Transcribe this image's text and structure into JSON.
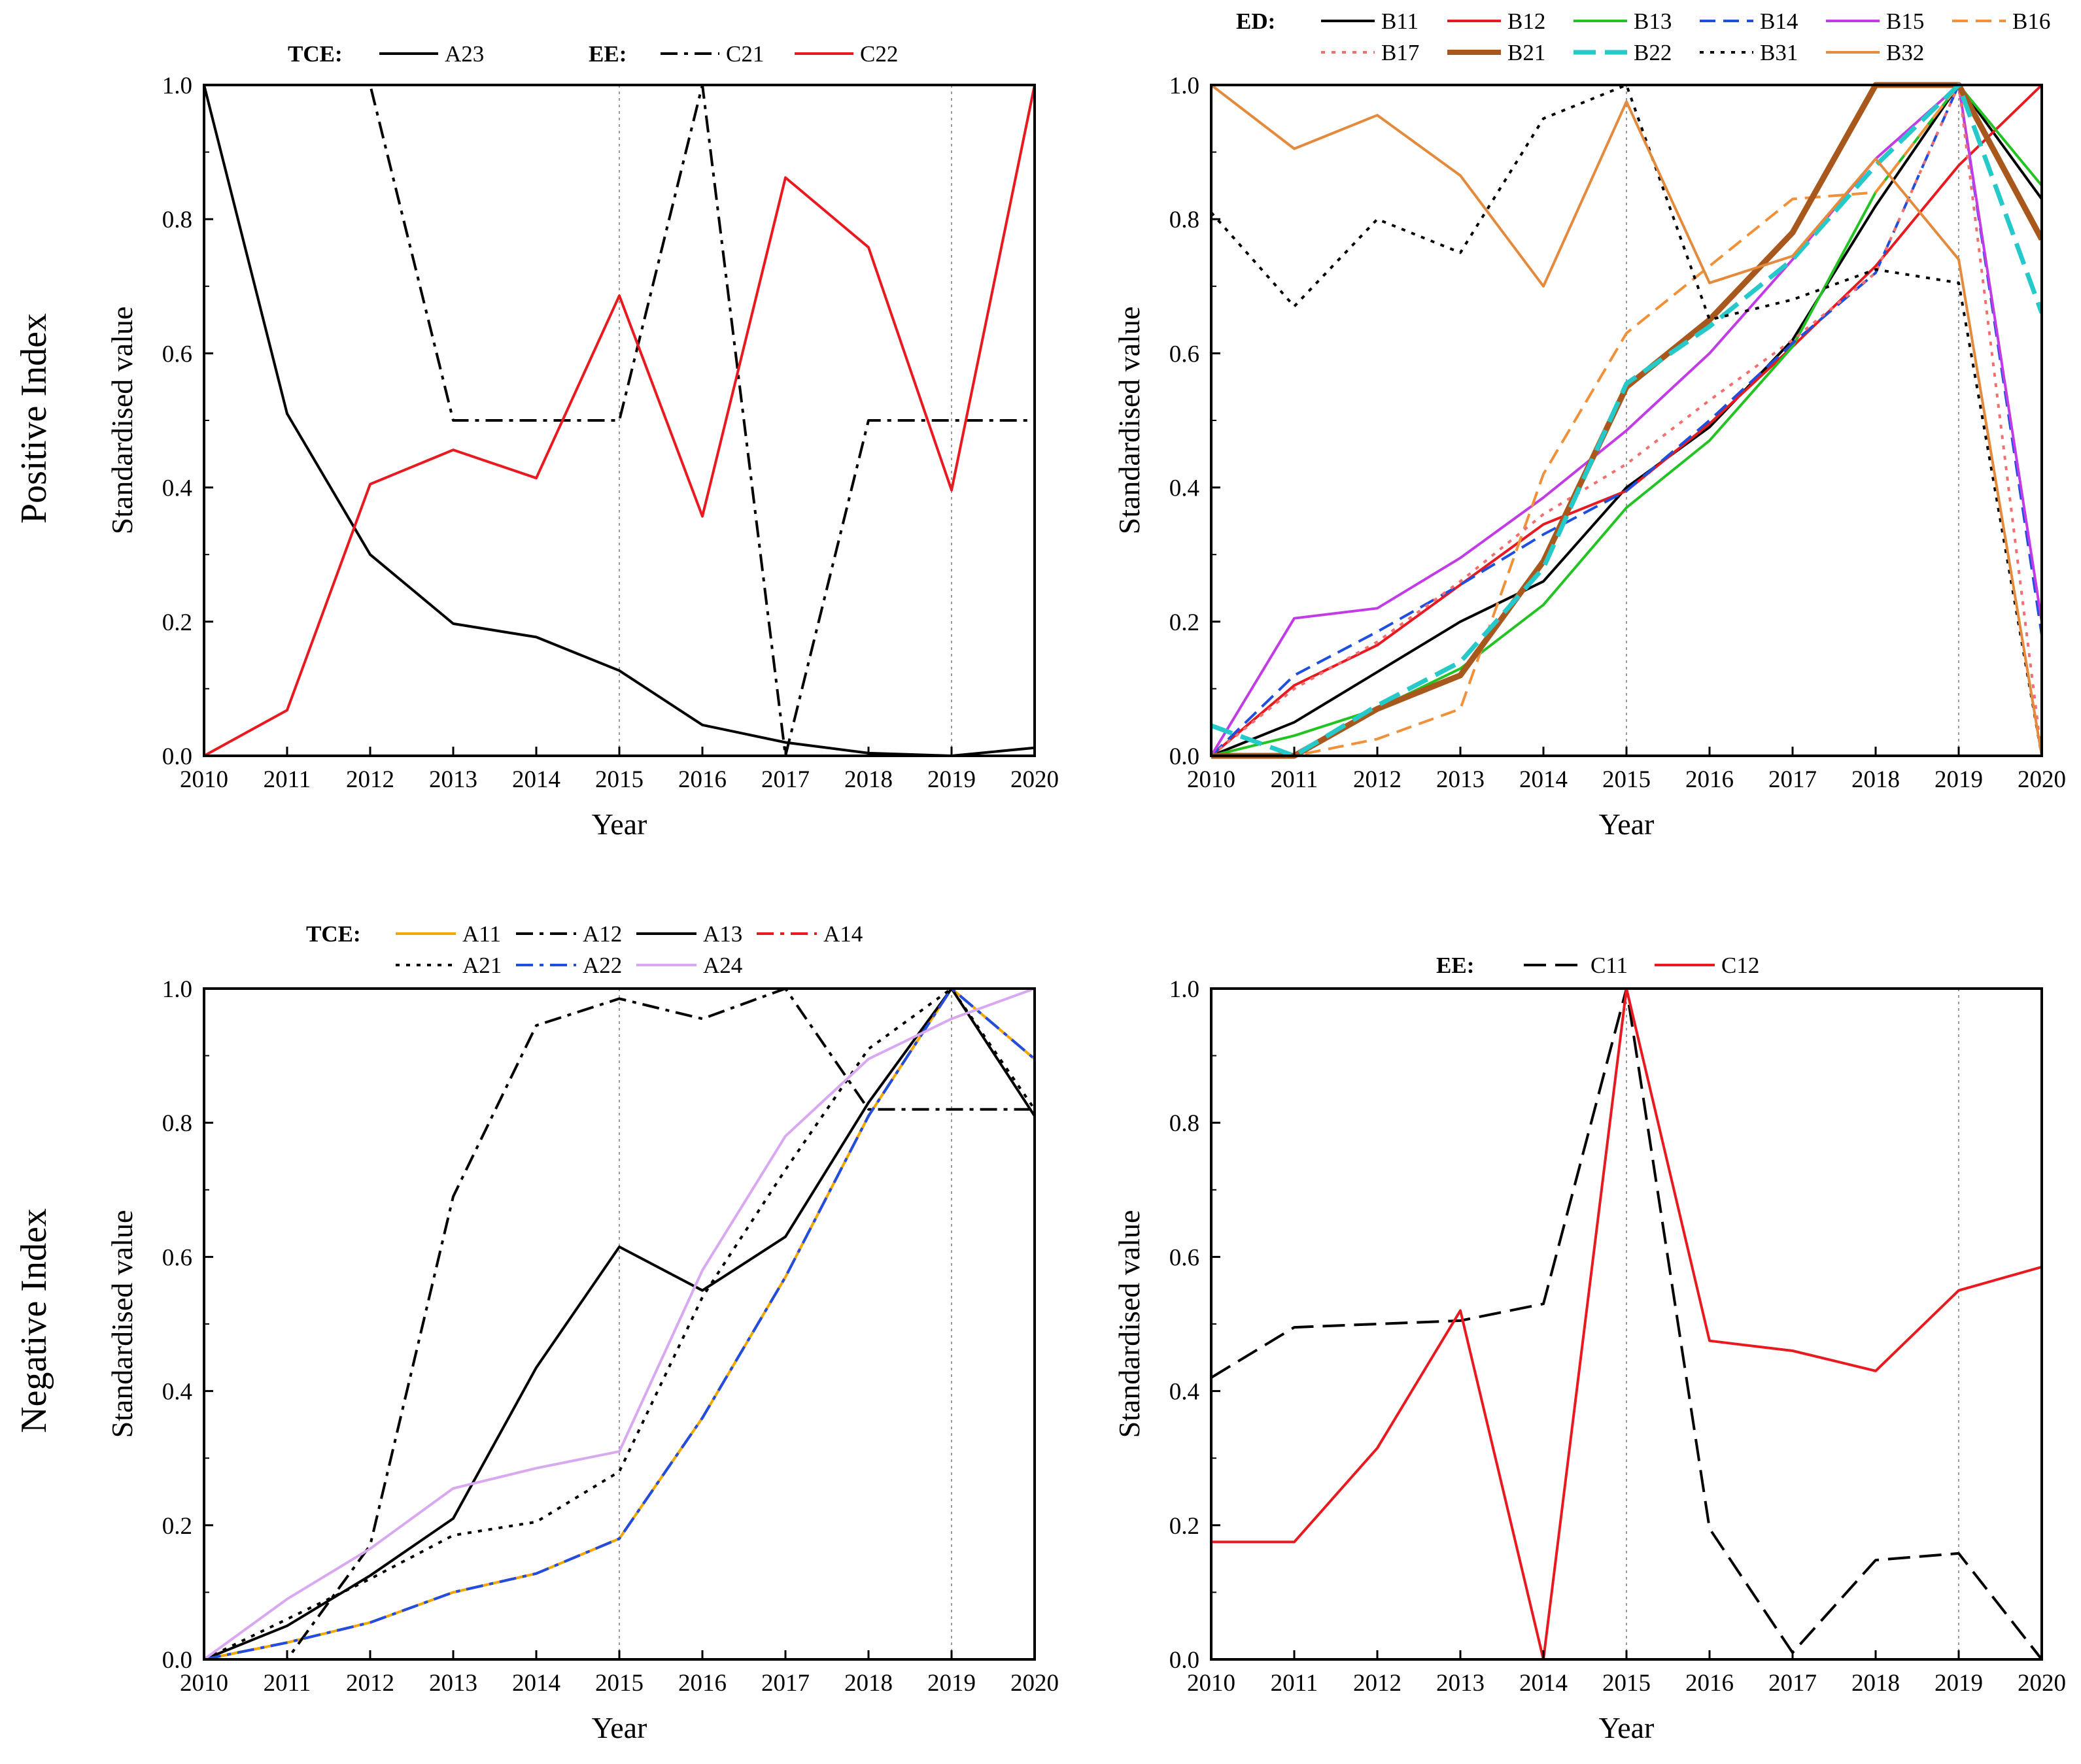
{
  "row_labels": [
    "Positive Index",
    "Negative Index"
  ],
  "chart_data": [
    {
      "type": "line",
      "title": "",
      "xlabel": "Year",
      "ylabel": "Standardised value",
      "x": [
        2010,
        2011,
        2012,
        2013,
        2014,
        2015,
        2016,
        2017,
        2018,
        2019,
        2020
      ],
      "xlim": [
        2010,
        2020
      ],
      "ylim": [
        0,
        1
      ],
      "yticks": [
        "0.0",
        "0.2",
        "0.4",
        "0.6",
        "0.8",
        "1.0"
      ],
      "ref_lines_x": [
        2015,
        2019
      ],
      "legend_groups": [
        {
          "label": "TCE:",
          "series": [
            "A23"
          ]
        },
        {
          "label": "EE:",
          "series": [
            "C21",
            "C22"
          ]
        }
      ],
      "series": [
        {
          "name": "A23",
          "color": "#000000",
          "dash": "solid",
          "width": 4,
          "values": [
            1.0,
            0.51,
            0.3,
            0.197,
            0.177,
            0.127,
            0.046,
            0.02,
            0.004,
            0.0,
            0.012
          ]
        },
        {
          "name": "C21",
          "color": "#000000",
          "dash": "dashdot",
          "width": 4,
          "values": [
            1.0,
            1.0,
            1.0,
            0.5,
            0.5,
            0.5,
            1.0,
            0.0,
            0.5,
            0.5,
            0.5
          ]
        },
        {
          "name": "C22",
          "color": "#e8191f",
          "dash": "solid",
          "width": 4,
          "values": [
            0.0,
            0.068,
            0.405,
            0.456,
            0.414,
            0.686,
            0.357,
            0.862,
            0.758,
            0.396,
            1.0
          ]
        }
      ]
    },
    {
      "type": "line",
      "title": "",
      "xlabel": "Year",
      "ylabel": "Standardised value",
      "x": [
        2010,
        2011,
        2012,
        2013,
        2014,
        2015,
        2016,
        2017,
        2018,
        2019,
        2020
      ],
      "xlim": [
        2010,
        2020
      ],
      "ylim": [
        0,
        1
      ],
      "yticks": [
        "0.0",
        "0.2",
        "0.4",
        "0.6",
        "0.8",
        "1.0"
      ],
      "ref_lines_x": [
        2015,
        2019
      ],
      "legend_groups": [
        {
          "label": "ED:",
          "series": [
            "B11",
            "B12",
            "B13",
            "B14",
            "B15",
            "B16",
            "B17",
            "B21",
            "B22",
            "B31",
            "B32"
          ]
        }
      ],
      "series": [
        {
          "name": "B11",
          "color": "#000000",
          "dash": "solid",
          "width": 4,
          "values": [
            0.0,
            0.05,
            0.125,
            0.2,
            0.26,
            0.4,
            0.49,
            0.62,
            0.82,
            1.0,
            0.83
          ]
        },
        {
          "name": "B12",
          "color": "#e8191f",
          "dash": "solid",
          "width": 4,
          "values": [
            0.0,
            0.105,
            0.165,
            0.255,
            0.345,
            0.395,
            0.495,
            0.61,
            0.73,
            0.88,
            1.0
          ]
        },
        {
          "name": "B13",
          "color": "#22c322",
          "dash": "solid",
          "width": 4,
          "values": [
            0.0,
            0.03,
            0.07,
            0.13,
            0.225,
            0.37,
            0.47,
            0.61,
            0.84,
            1.0,
            0.85
          ]
        },
        {
          "name": "B14",
          "color": "#1f4fe0",
          "dash": "dash",
          "width": 4,
          "values": [
            0.0,
            0.12,
            0.185,
            0.255,
            0.33,
            0.395,
            0.5,
            0.615,
            0.72,
            1.0,
            0.18
          ]
        },
        {
          "name": "B15",
          "color": "#c23ce6",
          "dash": "solid",
          "width": 4,
          "values": [
            0.0,
            0.205,
            0.22,
            0.295,
            0.385,
            0.485,
            0.6,
            0.74,
            0.89,
            1.0,
            0.2
          ]
        },
        {
          "name": "B16",
          "color": "#f0913a",
          "dash": "dash",
          "width": 4,
          "values": [
            0.0,
            0.0,
            0.025,
            0.07,
            0.42,
            0.63,
            0.73,
            0.83,
            0.84,
            1.0,
            1.0
          ]
        },
        {
          "name": "B17",
          "color": "#f26f6f",
          "dash": "dot",
          "width": 4,
          "values": [
            0.0,
            0.1,
            0.17,
            0.26,
            0.36,
            0.435,
            0.53,
            0.62,
            0.72,
            1.0,
            0.0
          ]
        },
        {
          "name": "B21",
          "color": "#a8581c",
          "dash": "solid",
          "width": 9,
          "values": [
            0.0,
            0.0,
            0.07,
            0.12,
            0.29,
            0.55,
            0.65,
            0.78,
            1.0,
            1.0,
            0.77
          ]
        },
        {
          "name": "B22",
          "color": "#26c9c9",
          "dash": "longdash",
          "width": 7,
          "values": [
            0.045,
            0.0,
            0.075,
            0.14,
            0.28,
            0.555,
            0.64,
            0.74,
            0.88,
            1.0,
            0.66
          ]
        },
        {
          "name": "B31",
          "color": "#000000",
          "dash": "dot",
          "width": 4,
          "values": [
            0.81,
            0.67,
            0.8,
            0.75,
            0.95,
            1.0,
            0.65,
            0.68,
            0.725,
            0.705,
            0.0
          ]
        },
        {
          "name": "B32",
          "color": "#e38a3c",
          "dash": "solid",
          "width": 4,
          "values": [
            1.0,
            0.905,
            0.955,
            0.865,
            0.7,
            0.975,
            0.705,
            0.745,
            0.89,
            0.74,
            0.0
          ]
        }
      ]
    },
    {
      "type": "line",
      "title": "",
      "xlabel": "Year",
      "ylabel": "Standardised value",
      "x": [
        2010,
        2011,
        2012,
        2013,
        2014,
        2015,
        2016,
        2017,
        2018,
        2019,
        2020
      ],
      "xlim": [
        2010,
        2020
      ],
      "ylim": [
        0,
        1
      ],
      "yticks": [
        "0.0",
        "0.2",
        "0.4",
        "0.6",
        "0.8",
        "1.0"
      ],
      "ref_lines_x": [
        2015,
        2019
      ],
      "legend_groups": [
        {
          "label": "TCE:",
          "series": [
            "A11",
            "A12",
            "A13",
            "A14",
            "A21",
            "A22",
            "A24"
          ]
        }
      ],
      "series": [
        {
          "name": "A11",
          "color": "#f0a800",
          "dash": "solid",
          "width": 4,
          "values": [
            0.0,
            0.025,
            0.055,
            0.1,
            0.128,
            0.18,
            0.36,
            0.57,
            0.81,
            1.0,
            0.895
          ]
        },
        {
          "name": "A12",
          "color": "#000000",
          "dash": "dashdot",
          "width": 4,
          "values": [
            0.0,
            0.0,
            0.17,
            0.69,
            0.945,
            0.985,
            0.955,
            1.0,
            0.82,
            0.82,
            0.82
          ]
        },
        {
          "name": "A13",
          "color": "#000000",
          "dash": "solid",
          "width": 4,
          "values": [
            0.0,
            0.05,
            0.125,
            0.21,
            0.435,
            0.615,
            0.55,
            0.63,
            0.83,
            1.0,
            0.81
          ]
        },
        {
          "name": "A14",
          "color": "#e8191f",
          "dash": "dashdot",
          "width": 4,
          "values": [
            0.0,
            0.025,
            0.055,
            0.1,
            0.128,
            0.18,
            0.36,
            0.57,
            0.81,
            1.0,
            0.895
          ]
        },
        {
          "name": "A21",
          "color": "#000000",
          "dash": "dot",
          "width": 4,
          "values": [
            0.0,
            0.06,
            0.12,
            0.185,
            0.205,
            0.28,
            0.54,
            0.73,
            0.91,
            1.0,
            0.82
          ]
        },
        {
          "name": "A22",
          "color": "#1f4fe0",
          "dash": "dashdot",
          "width": 4,
          "values": [
            0.0,
            0.025,
            0.055,
            0.1,
            0.128,
            0.18,
            0.36,
            0.57,
            0.81,
            1.0,
            0.895
          ]
        },
        {
          "name": "A24",
          "color": "#d8a8f0",
          "dash": "solid",
          "width": 4,
          "values": [
            0.0,
            0.09,
            0.165,
            0.255,
            0.285,
            0.31,
            0.58,
            0.78,
            0.895,
            0.955,
            1.0
          ]
        }
      ]
    },
    {
      "type": "line",
      "title": "",
      "xlabel": "Year",
      "ylabel": "Standardised value",
      "x": [
        2010,
        2011,
        2012,
        2013,
        2014,
        2015,
        2016,
        2017,
        2018,
        2019,
        2020
      ],
      "xlim": [
        2010,
        2020
      ],
      "ylim": [
        0,
        1
      ],
      "yticks": [
        "0.0",
        "0.2",
        "0.4",
        "0.6",
        "0.8",
        "1.0"
      ],
      "ref_lines_x": [
        2015,
        2019
      ],
      "legend_groups": [
        {
          "label": "EE:",
          "series": [
            "C11",
            "C12"
          ]
        }
      ],
      "series": [
        {
          "name": "C11",
          "color": "#000000",
          "dash": "longdash",
          "width": 4,
          "values": [
            0.42,
            0.495,
            0.5,
            0.505,
            0.53,
            1.0,
            0.195,
            0.01,
            0.148,
            0.158,
            0.0
          ]
        },
        {
          "name": "C12",
          "color": "#e8191f",
          "dash": "solid",
          "width": 4,
          "values": [
            0.175,
            0.175,
            0.315,
            0.52,
            0.0,
            1.0,
            0.475,
            0.46,
            0.43,
            0.55,
            0.585
          ]
        }
      ]
    }
  ]
}
